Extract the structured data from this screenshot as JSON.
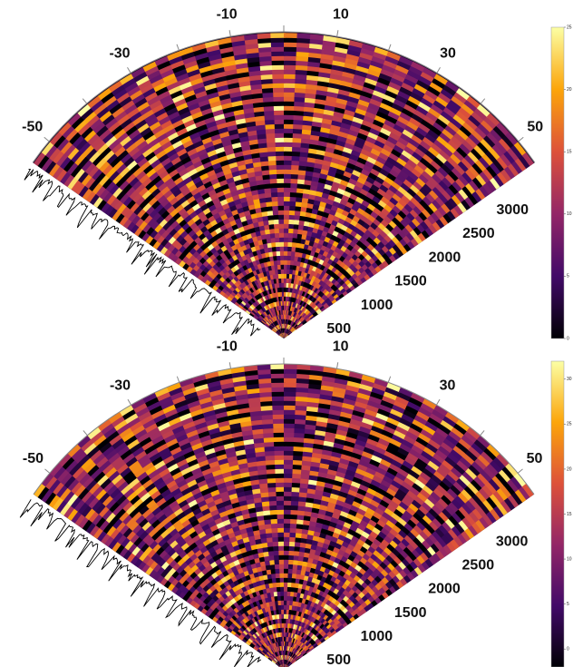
{
  "chart_data": [
    {
      "type": "polar-heatmap",
      "colormap": "inferno",
      "thetalim": [
        -55,
        55
      ],
      "thetaticks": [
        -50,
        -30,
        -10,
        10,
        30,
        50
      ],
      "minor_thetaticks": [
        -40,
        -20,
        0,
        20,
        40
      ],
      "rlim": [
        0,
        3700
      ],
      "rticks": [
        500,
        1000,
        1500,
        2000,
        2500,
        3000
      ],
      "clim": [
        0,
        25
      ],
      "cticks": [
        0,
        5,
        10,
        15,
        20,
        25
      ],
      "trace": true
    },
    {
      "type": "polar-heatmap",
      "colormap": "inferno",
      "thetalim": [
        -55,
        55
      ],
      "thetaticks": [
        -50,
        -30,
        -10,
        10,
        30,
        50
      ],
      "minor_thetaticks": [
        -40,
        -20,
        0,
        20,
        40
      ],
      "rlim": [
        0,
        3700
      ],
      "rticks": [
        500,
        1000,
        1500,
        2000,
        2500,
        3000
      ],
      "clim": [
        -2,
        32
      ],
      "cticks": [
        0,
        5,
        10,
        15,
        20,
        25,
        30
      ],
      "trace": true
    }
  ]
}
